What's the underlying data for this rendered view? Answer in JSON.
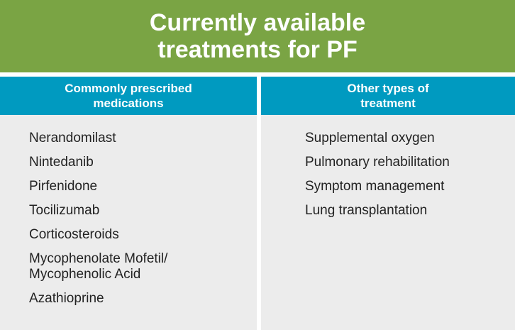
{
  "title": "Currently available treatments for PF",
  "columns": [
    {
      "header": "Commonly prescribed medications",
      "items": [
        "Nerandomilast",
        "Nintedanib",
        "Pirfenidone",
        "Tocilizumab",
        "Corticosteroids",
        "Mycophenolate Mofetil/ Mycophenolic Acid",
        "Azathioprine"
      ]
    },
    {
      "header": "Other types of treatment",
      "items": [
        "Supplemental oxygen",
        "Pulmonary rehabilitation",
        "Symptom management",
        "Lung transplantation"
      ]
    }
  ],
  "colors": {
    "banner": "#7aa444",
    "header": "#009ac0",
    "panel": "#ececec"
  }
}
